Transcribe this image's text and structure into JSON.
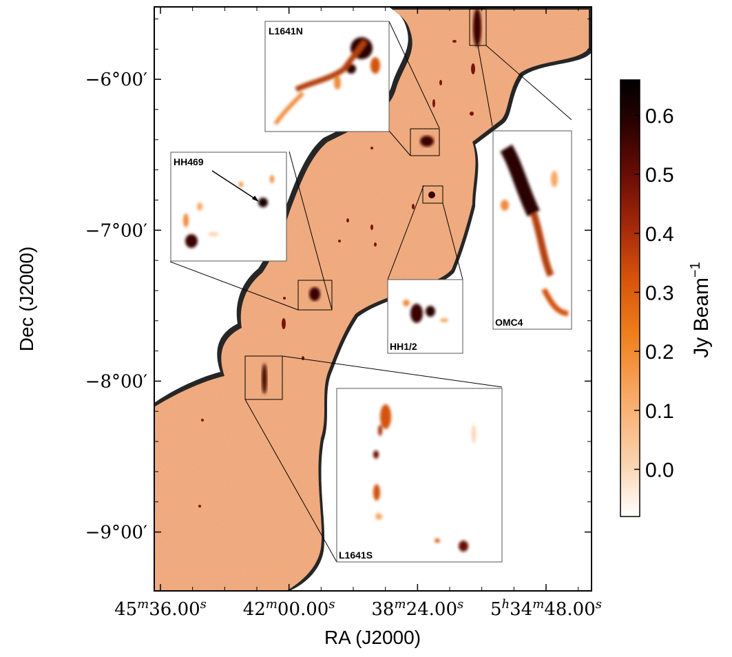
{
  "chart_data": {
    "type": "heatmap",
    "xlabel": "RA (J2000)",
    "ylabel": "Dec (J2000)",
    "colorbar_label": "Jy Beam",
    "colorbar_label_sup": "−1",
    "x_ticks": [
      {
        "label": "45",
        "sup1": "m",
        "mid": "36.00",
        "sup2": "s"
      },
      {
        "label": "42",
        "sup1": "m",
        "mid": "00.00",
        "sup2": "s"
      },
      {
        "label": "38",
        "sup1": "m",
        "mid": "24.00",
        "sup2": "s"
      },
      {
        "label": "5",
        "sup1": "h",
        "mid": "34",
        "sup1b": "m",
        "mid2": "48.00",
        "sup2": "s"
      }
    ],
    "y_ticks": [
      {
        "label": "−6°00′",
        "value": -6.0
      },
      {
        "label": "−7°00′",
        "value": -7.0
      },
      {
        "label": "−8°00′",
        "value": -8.0
      },
      {
        "label": "−9°00′",
        "value": -9.0
      }
    ],
    "dec_range": [
      -9.39,
      -5.52
    ],
    "colorbar_range": [
      -0.08,
      0.66
    ],
    "colorbar_ticks": [
      {
        "label": "0.6",
        "value": 0.6
      },
      {
        "label": "0.5",
        "value": 0.5
      },
      {
        "label": "0.4",
        "value": 0.4
      },
      {
        "label": "0.3",
        "value": 0.3
      },
      {
        "label": "0.2",
        "value": 0.2
      },
      {
        "label": "0.1",
        "value": 0.1
      },
      {
        "label": "0.0",
        "value": 0.0
      }
    ],
    "colormap": [
      "#ffffff",
      "#fbd3b0",
      "#f7a863",
      "#ef7e1b",
      "#d4520a",
      "#a52a0a",
      "#6a0d05",
      "#2a0200",
      "#000000"
    ],
    "insets": [
      {
        "name": "L1641N"
      },
      {
        "name": "HH469"
      },
      {
        "name": "HH1/2"
      },
      {
        "name": "OMC4"
      },
      {
        "name": "L1641S"
      }
    ]
  }
}
